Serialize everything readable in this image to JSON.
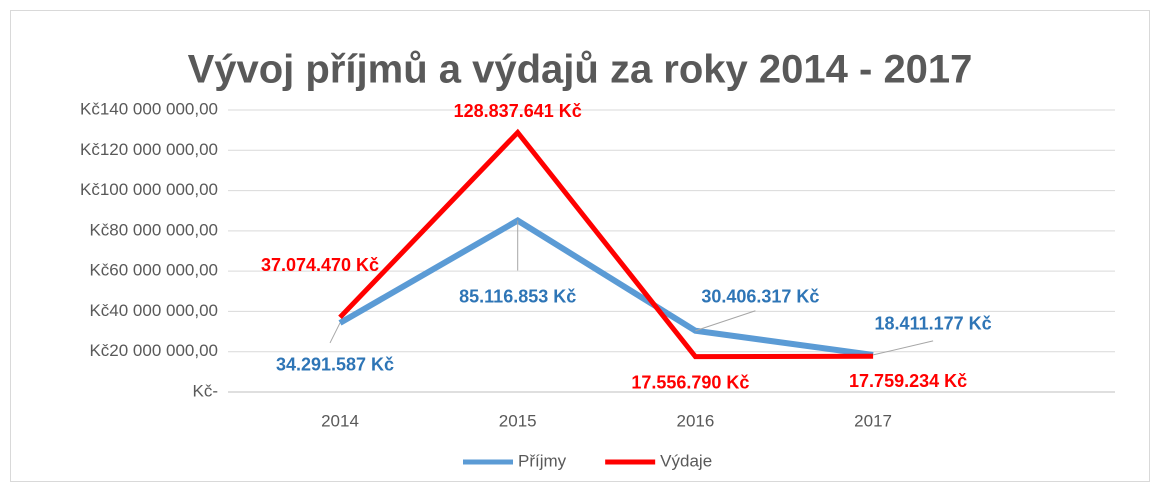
{
  "chart_data": {
    "type": "line",
    "title": "Vývoj příjmů a výdajů za roky 2014 - 2017",
    "categories": [
      "2014",
      "2015",
      "2016",
      "2017"
    ],
    "series": [
      {
        "name": "Příjmy",
        "color": "#5b9bd5",
        "label_color": "#2e75b6",
        "values": [
          34291587,
          85116853,
          30406317,
          18411177
        ],
        "value_labels": [
          "34.291.587 Kč",
          "85.116.853 Kč",
          "30.406.317 Kč",
          "18.411.177 Kč"
        ]
      },
      {
        "name": "Výdaje",
        "color": "#ff0000",
        "label_color": "#ff0000",
        "values": [
          37074470,
          128837641,
          17556790,
          17759234
        ],
        "value_labels": [
          "37.074.470 Kč",
          "128.837.641 Kč",
          "17.556.790 Kč",
          "17.759.234 Kč"
        ]
      }
    ],
    "ylim": [
      0,
      140000000
    ],
    "yticks": [
      {
        "value": 0,
        "label": "Kč-"
      },
      {
        "value": 20000000,
        "label": "Kč20 000 000,00"
      },
      {
        "value": 40000000,
        "label": "Kč40 000 000,00"
      },
      {
        "value": 60000000,
        "label": "Kč60 000 000,00"
      },
      {
        "value": 80000000,
        "label": "Kč80 000 000,00"
      },
      {
        "value": 100000000,
        "label": "Kč100 000 000,00"
      },
      {
        "value": 120000000,
        "label": "Kč120 000 000,00"
      },
      {
        "value": 140000000,
        "label": "Kč140 000 000,00"
      }
    ],
    "grid": true,
    "legend": "bottom"
  }
}
